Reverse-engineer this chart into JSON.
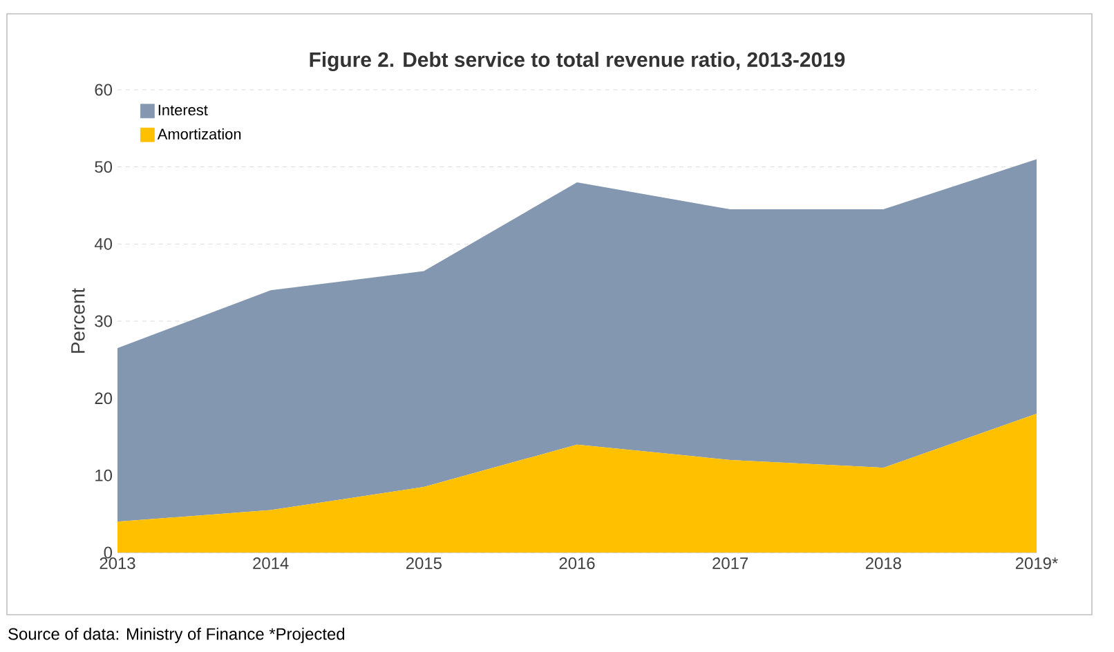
{
  "chart_data": {
    "type": "area",
    "title": "Figure 2. Debt service to total revenue ratio, 2013-2019",
    "ylabel": "Percent",
    "categories": [
      "2013",
      "2014",
      "2015",
      "2016",
      "2017",
      "2018",
      "2019*"
    ],
    "series": [
      {
        "name": "Amortization",
        "color": "#ffc000",
        "values": [
          4,
          5.5,
          8.5,
          14,
          12,
          11,
          18
        ]
      },
      {
        "name": "Interest",
        "color": "#8497b0",
        "values": [
          22.5,
          28.5,
          28,
          34,
          32.5,
          33.5,
          33
        ]
      }
    ],
    "stacked": true,
    "ylim": [
      0,
      60
    ],
    "yticks": [
      0,
      10,
      20,
      30,
      40,
      50,
      60
    ],
    "grid": "y",
    "legend": "top left",
    "annotations": [
      "Source of data: Ministry of Finance *Projected"
    ]
  }
}
